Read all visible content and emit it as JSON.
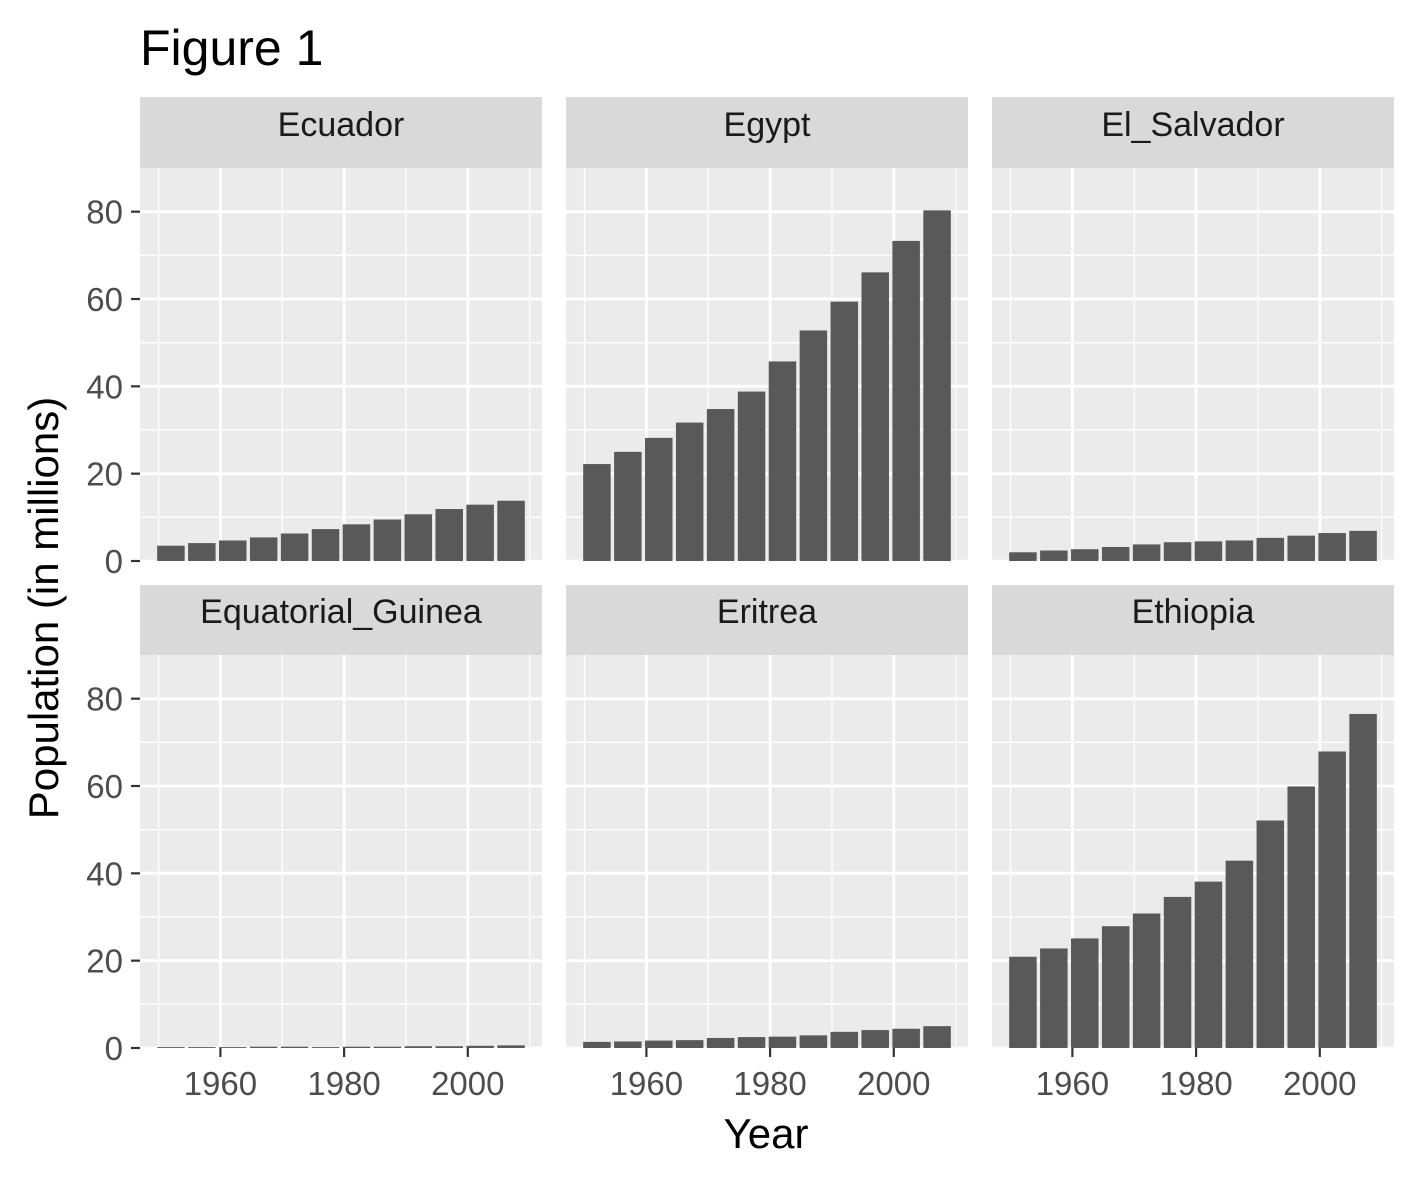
{
  "chart_data": {
    "type": "bar",
    "title": "Figure 1",
    "xlabel": "Year",
    "ylabel": "Population (in millions)",
    "xlim": [
      1947,
      2012
    ],
    "ylim": [
      0,
      90
    ],
    "x_ticks": [
      1960,
      1980,
      2000
    ],
    "y_ticks": [
      0,
      20,
      40,
      60,
      80
    ],
    "grid": true,
    "facet_layout": "3 columns x 2 rows",
    "x": [
      1952,
      1957,
      1962,
      1967,
      1972,
      1977,
      1982,
      1987,
      1992,
      1997,
      2002,
      2007
    ],
    "bar_color": "#595959",
    "panel_background": "#ebebeb",
    "strip_background": "#d9d9d9",
    "panels": [
      {
        "name": "Ecuador",
        "values": [
          3.5,
          4.1,
          4.7,
          5.4,
          6.3,
          7.3,
          8.4,
          9.5,
          10.7,
          11.9,
          12.9,
          13.8
        ]
      },
      {
        "name": "Egypt",
        "values": [
          22.2,
          25.0,
          28.2,
          31.7,
          34.8,
          38.8,
          45.7,
          52.8,
          59.4,
          66.1,
          73.3,
          80.3
        ]
      },
      {
        "name": "El_Salvador",
        "values": [
          2.0,
          2.4,
          2.7,
          3.2,
          3.8,
          4.3,
          4.5,
          4.7,
          5.3,
          5.8,
          6.4,
          6.9
        ]
      },
      {
        "name": "Equatorial_Guinea",
        "values": [
          0.2,
          0.2,
          0.2,
          0.3,
          0.3,
          0.2,
          0.3,
          0.3,
          0.4,
          0.4,
          0.5,
          0.6
        ]
      },
      {
        "name": "Eritrea",
        "values": [
          1.4,
          1.5,
          1.7,
          1.8,
          2.3,
          2.5,
          2.6,
          2.9,
          3.7,
          4.1,
          4.4,
          5.0
        ]
      },
      {
        "name": "Ethiopia",
        "values": [
          20.9,
          22.8,
          25.1,
          27.9,
          30.8,
          34.6,
          38.1,
          42.9,
          52.1,
          59.9,
          67.9,
          76.5
        ]
      }
    ]
  }
}
